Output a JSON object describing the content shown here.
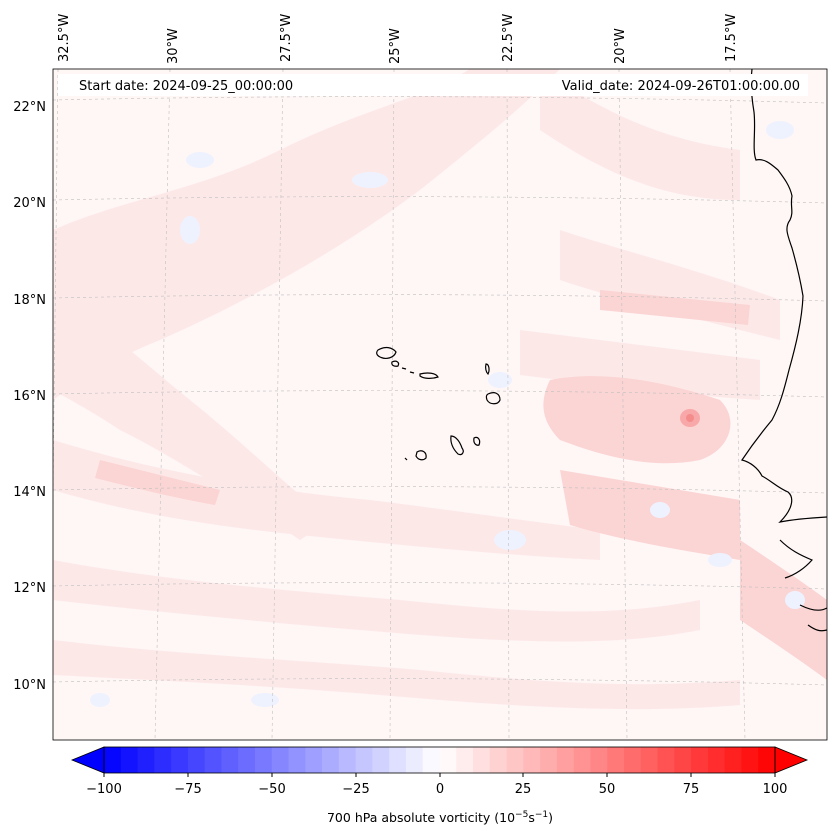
{
  "header": {
    "start_date": "Start date: 2024-09-25_00:00:00",
    "valid_date": "Valid_date: 2024-09-26T01:00:00.00"
  },
  "map": {
    "lon_labels": [
      "32.5°W",
      "30°W",
      "27.5°W",
      "25°W",
      "22.5°W",
      "20°W",
      "17.5°W"
    ],
    "lat_labels": [
      "22°N",
      "20°N",
      "18°N",
      "16°N",
      "14°N",
      "12°N",
      "10°N"
    ],
    "field_colors": {
      "light_pink": "#fde8e8",
      "pink": "#fbd4d4",
      "hot": "#f8a8a8",
      "blue_tint": "#eef2ff",
      "background": "#fff6f6"
    }
  },
  "colorbar": {
    "ticks": [
      "−100",
      "−75",
      "−50",
      "−25",
      "0",
      "25",
      "50",
      "75",
      "100"
    ],
    "label_prefix": "700 hPa absolute vorticity (10",
    "label_exp1": "−5",
    "label_mid": "s",
    "label_exp2": "−1",
    "label_suffix": ")",
    "colors": {
      "negative_end": "#0000ff",
      "center": "#ffffff",
      "positive_end": "#ff0000"
    }
  }
}
